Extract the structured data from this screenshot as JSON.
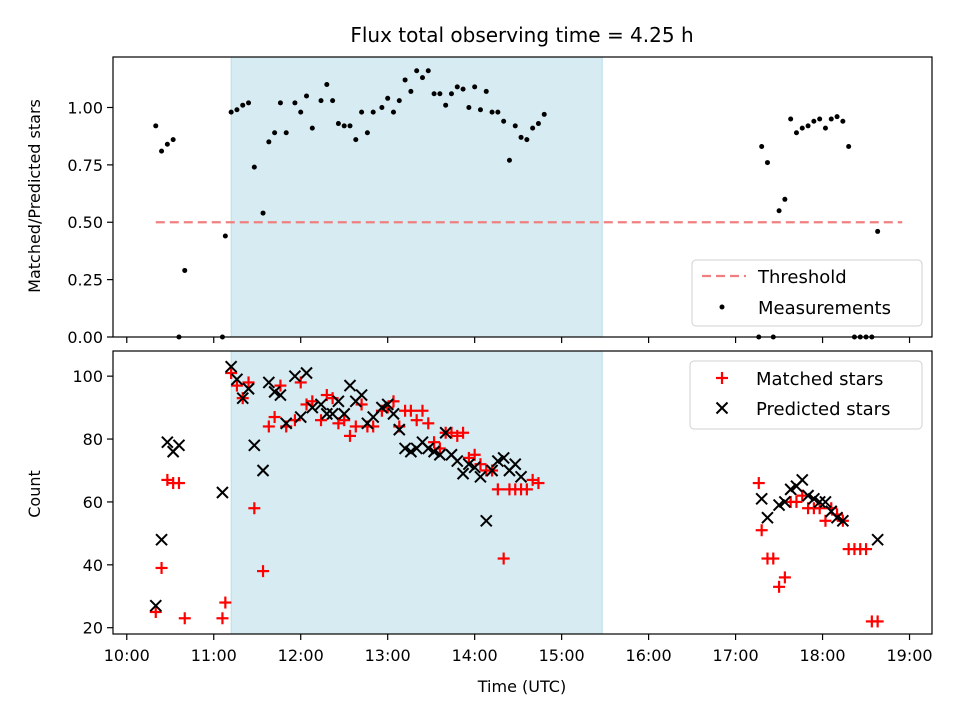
{
  "chart_data": [
    {
      "type": "scatter",
      "title": "Flux total observing time = 4.25 h",
      "ylabel": "Matched/Predicted stars",
      "ylim": [
        0,
        1.22
      ],
      "yticks": [
        0,
        0.25,
        0.5,
        0.75,
        1.0
      ],
      "ytick_labels": [
        "0.00",
        "0.25",
        "0.50",
        "0.75",
        "1.00"
      ],
      "shaded_span": [
        "11:12",
        "15:28"
      ],
      "legend_position": "lower-right",
      "threshold": {
        "name": "Threshold",
        "value": 0.5,
        "from": "10:20",
        "to": "18:55",
        "color": "#f08080"
      },
      "series": [
        {
          "name": "Measurements",
          "color": "#000000",
          "points": [
            [
              "10:20",
              0.92
            ],
            [
              "10:24",
              0.81
            ],
            [
              "10:28",
              0.84
            ],
            [
              "10:32",
              0.86
            ],
            [
              "10:36",
              0.0
            ],
            [
              "10:40",
              0.29
            ],
            [
              "11:06",
              0.0
            ],
            [
              "11:08",
              0.44
            ],
            [
              "11:12",
              0.98
            ],
            [
              "11:16",
              0.99
            ],
            [
              "11:20",
              1.01
            ],
            [
              "11:24",
              1.02
            ],
            [
              "11:28",
              0.74
            ],
            [
              "11:34",
              0.54
            ],
            [
              "11:38",
              0.85
            ],
            [
              "11:42",
              0.89
            ],
            [
              "11:46",
              1.02
            ],
            [
              "11:50",
              0.89
            ],
            [
              "11:56",
              1.02
            ],
            [
              "12:00",
              0.98
            ],
            [
              "12:04",
              1.05
            ],
            [
              "12:08",
              0.91
            ],
            [
              "12:14",
              1.03
            ],
            [
              "12:18",
              1.1
            ],
            [
              "12:22",
              1.03
            ],
            [
              "12:26",
              0.93
            ],
            [
              "12:30",
              0.92
            ],
            [
              "12:34",
              0.92
            ],
            [
              "12:38",
              0.86
            ],
            [
              "12:42",
              0.98
            ],
            [
              "12:46",
              0.89
            ],
            [
              "12:50",
              0.98
            ],
            [
              "12:56",
              1.0
            ],
            [
              "13:00",
              1.04
            ],
            [
              "13:04",
              0.98
            ],
            [
              "13:08",
              1.03
            ],
            [
              "13:12",
              1.12
            ],
            [
              "13:16",
              1.07
            ],
            [
              "13:20",
              1.16
            ],
            [
              "13:24",
              1.13
            ],
            [
              "13:28",
              1.16
            ],
            [
              "13:32",
              1.06
            ],
            [
              "13:36",
              1.06
            ],
            [
              "13:40",
              1.01
            ],
            [
              "13:44",
              1.06
            ],
            [
              "13:48",
              1.09
            ],
            [
              "13:52",
              1.08
            ],
            [
              "13:56",
              1.0
            ],
            [
              "14:00",
              1.09
            ],
            [
              "14:04",
              0.99
            ],
            [
              "14:08",
              1.07
            ],
            [
              "14:12",
              0.98
            ],
            [
              "14:16",
              0.98
            ],
            [
              "14:20",
              0.94
            ],
            [
              "14:24",
              0.77
            ],
            [
              "14:28",
              0.92
            ],
            [
              "14:32",
              0.87
            ],
            [
              "14:36",
              0.86
            ],
            [
              "14:40",
              0.91
            ],
            [
              "14:44",
              0.93
            ],
            [
              "14:48",
              0.97
            ],
            [
              "17:16",
              0.0
            ],
            [
              "17:18",
              0.83
            ],
            [
              "17:22",
              0.76
            ],
            [
              "17:26",
              0.0
            ],
            [
              "17:30",
              0.55
            ],
            [
              "17:34",
              0.6
            ],
            [
              "17:38",
              0.95
            ],
            [
              "17:42",
              0.89
            ],
            [
              "17:46",
              0.91
            ],
            [
              "17:50",
              0.92
            ],
            [
              "17:54",
              0.94
            ],
            [
              "17:58",
              0.95
            ],
            [
              "18:02",
              0.91
            ],
            [
              "18:06",
              0.95
            ],
            [
              "18:10",
              0.96
            ],
            [
              "18:14",
              0.94
            ],
            [
              "18:18",
              0.83
            ],
            [
              "18:22",
              0.0
            ],
            [
              "18:26",
              0.0
            ],
            [
              "18:30",
              0.0
            ],
            [
              "18:34",
              0.0
            ],
            [
              "18:38",
              0.46
            ]
          ]
        }
      ]
    },
    {
      "type": "scatter",
      "xlabel": "Time (UTC)",
      "ylabel": "Count",
      "ylim": [
        18,
        108
      ],
      "yticks": [
        20,
        40,
        60,
        80,
        100
      ],
      "ytick_labels": [
        "20",
        "40",
        "60",
        "80",
        "100"
      ],
      "xticks": [
        "10:00",
        "11:00",
        "12:00",
        "13:00",
        "14:00",
        "15:00",
        "16:00",
        "17:00",
        "18:00",
        "19:00"
      ],
      "shaded_span": [
        "11:12",
        "15:28"
      ],
      "legend_position": "upper-right",
      "series": [
        {
          "name": "Matched stars",
          "marker": "+",
          "color": "#ff0000",
          "points": [
            [
              "10:20",
              25
            ],
            [
              "10:24",
              39
            ],
            [
              "10:28",
              67
            ],
            [
              "10:32",
              66
            ],
            [
              "10:36",
              66
            ],
            [
              "10:40",
              23
            ],
            [
              "11:06",
              23
            ],
            [
              "11:08",
              28
            ],
            [
              "11:12",
              101
            ],
            [
              "11:16",
              97
            ],
            [
              "11:20",
              93
            ],
            [
              "11:24",
              98
            ],
            [
              "11:28",
              58
            ],
            [
              "11:34",
              38
            ],
            [
              "11:38",
              84
            ],
            [
              "11:42",
              87
            ],
            [
              "11:46",
              97
            ],
            [
              "11:50",
              84
            ],
            [
              "11:56",
              86
            ],
            [
              "12:00",
              98
            ],
            [
              "12:04",
              91
            ],
            [
              "12:08",
              92
            ],
            [
              "12:14",
              86
            ],
            [
              "12:18",
              94
            ],
            [
              "12:22",
              93
            ],
            [
              "12:26",
              85
            ],
            [
              "12:30",
              86
            ],
            [
              "12:34",
              81
            ],
            [
              "12:38",
              84
            ],
            [
              "12:42",
              91
            ],
            [
              "12:46",
              84
            ],
            [
              "12:50",
              84
            ],
            [
              "12:56",
              89
            ],
            [
              "13:00",
              90
            ],
            [
              "13:04",
              92
            ],
            [
              "13:08",
              84
            ],
            [
              "13:12",
              89
            ],
            [
              "13:16",
              89
            ],
            [
              "13:20",
              86
            ],
            [
              "13:24",
              89
            ],
            [
              "13:28",
              85
            ],
            [
              "13:32",
              79
            ],
            [
              "13:36",
              77
            ],
            [
              "13:40",
              82
            ],
            [
              "13:44",
              82
            ],
            [
              "13:48",
              81
            ],
            [
              "13:52",
              82
            ],
            [
              "13:56",
              74
            ],
            [
              "14:00",
              75
            ],
            [
              "14:04",
              72
            ],
            [
              "14:08",
              70
            ],
            [
              "14:12",
              70
            ],
            [
              "14:16",
              64
            ],
            [
              "14:20",
              42
            ],
            [
              "14:24",
              64
            ],
            [
              "14:28",
              64
            ],
            [
              "14:32",
              64
            ],
            [
              "14:36",
              64
            ],
            [
              "14:40",
              67
            ],
            [
              "14:44",
              66
            ],
            [
              "17:16",
              66
            ],
            [
              "17:18",
              51
            ],
            [
              "17:22",
              42
            ],
            [
              "17:26",
              42
            ],
            [
              "17:30",
              33
            ],
            [
              "17:34",
              36
            ],
            [
              "17:38",
              60
            ],
            [
              "17:42",
              60
            ],
            [
              "17:46",
              62
            ],
            [
              "17:50",
              58
            ],
            [
              "17:54",
              58
            ],
            [
              "17:58",
              58
            ],
            [
              "18:02",
              54
            ],
            [
              "18:06",
              58
            ],
            [
              "18:10",
              56
            ],
            [
              "18:14",
              54
            ],
            [
              "18:18",
              45
            ],
            [
              "18:22",
              45
            ],
            [
              "18:26",
              45
            ],
            [
              "18:30",
              45
            ],
            [
              "18:34",
              22
            ],
            [
              "18:38",
              22
            ]
          ]
        },
        {
          "name": "Predicted stars",
          "marker": "x",
          "color": "#000000",
          "points": [
            [
              "10:20",
              27
            ],
            [
              "10:24",
              48
            ],
            [
              "10:28",
              79
            ],
            [
              "10:32",
              76
            ],
            [
              "10:36",
              78
            ],
            [
              "11:06",
              63
            ],
            [
              "11:12",
              103
            ],
            [
              "11:16",
              99
            ],
            [
              "11:20",
              93
            ],
            [
              "11:24",
              96
            ],
            [
              "11:28",
              78
            ],
            [
              "11:34",
              70
            ],
            [
              "11:38",
              98
            ],
            [
              "11:42",
              95
            ],
            [
              "11:46",
              94
            ],
            [
              "11:50",
              85
            ],
            [
              "11:56",
              100
            ],
            [
              "12:00",
              87
            ],
            [
              "12:04",
              101
            ],
            [
              "12:08",
              90
            ],
            [
              "12:14",
              91
            ],
            [
              "12:18",
              88
            ],
            [
              "12:22",
              88
            ],
            [
              "12:26",
              92
            ],
            [
              "12:30",
              88
            ],
            [
              "12:34",
              97
            ],
            [
              "12:38",
              92
            ],
            [
              "12:42",
              94
            ],
            [
              "12:46",
              85
            ],
            [
              "12:50",
              87
            ],
            [
              "12:56",
              90
            ],
            [
              "13:00",
              91
            ],
            [
              "13:04",
              88
            ],
            [
              "13:08",
              83
            ],
            [
              "13:12",
              77
            ],
            [
              "13:16",
              76
            ],
            [
              "13:20",
              77
            ],
            [
              "13:24",
              79
            ],
            [
              "13:28",
              77
            ],
            [
              "13:32",
              76
            ],
            [
              "13:36",
              75
            ],
            [
              "13:40",
              82
            ],
            [
              "13:44",
              75
            ],
            [
              "13:48",
              73
            ],
            [
              "13:52",
              69
            ],
            [
              "13:56",
              72
            ],
            [
              "14:00",
              71
            ],
            [
              "14:04",
              68
            ],
            [
              "14:08",
              54
            ],
            [
              "14:12",
              70
            ],
            [
              "14:16",
              73
            ],
            [
              "14:20",
              74
            ],
            [
              "14:24",
              70
            ],
            [
              "14:28",
              72
            ],
            [
              "14:32",
              68
            ],
            [
              "17:18",
              61
            ],
            [
              "17:22",
              55
            ],
            [
              "17:30",
              59
            ],
            [
              "17:34",
              60
            ],
            [
              "17:38",
              64
            ],
            [
              "17:42",
              65
            ],
            [
              "17:46",
              67
            ],
            [
              "17:50",
              62
            ],
            [
              "17:54",
              61
            ],
            [
              "17:58",
              60
            ],
            [
              "18:02",
              60
            ],
            [
              "18:06",
              57
            ],
            [
              "18:10",
              55
            ],
            [
              "18:14",
              54
            ],
            [
              "18:38",
              48
            ]
          ]
        }
      ]
    }
  ]
}
